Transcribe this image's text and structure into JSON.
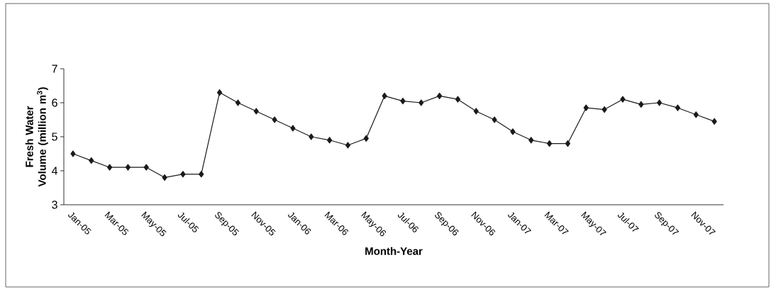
{
  "chart_data": {
    "type": "line",
    "xlabel": "Month-Year",
    "ylabel": "Fresh Water Volume (million m$^{3}$)",
    "categories": [
      "Jan-05",
      null,
      "Mar-05",
      null,
      "May-05",
      null,
      "Jul-05",
      null,
      "Sep-05",
      null,
      "Nov-05",
      null,
      "Jan-06",
      null,
      "Mar-06",
      null,
      "May-06",
      null,
      "Jul-06",
      null,
      "Sep-06",
      null,
      "Nov-06",
      null,
      "Jan-07",
      null,
      "Mar-07",
      null,
      "May-07",
      null,
      "Jul-07",
      null,
      "Sep-07",
      null,
      "Nov-07",
      null
    ],
    "values": [
      4.5,
      4.3,
      4.1,
      4.1,
      4.1,
      3.8,
      3.9,
      3.9,
      6.3,
      6.0,
      5.75,
      5.5,
      5.25,
      5.0,
      4.9,
      4.75,
      4.95,
      6.2,
      6.05,
      6.0,
      6.2,
      6.1,
      5.75,
      5.5,
      5.15,
      4.9,
      4.8,
      4.8,
      5.85,
      5.8,
      6.1,
      5.95,
      6.0,
      5.85,
      5.65,
      5.45
    ],
    "color": "#1a1a1a",
    "marker": "diamond",
    "line_style": "solid",
    "ylim": [
      3,
      7
    ],
    "yticks": [
      3,
      4,
      5,
      6,
      7
    ],
    "grid": false
  }
}
